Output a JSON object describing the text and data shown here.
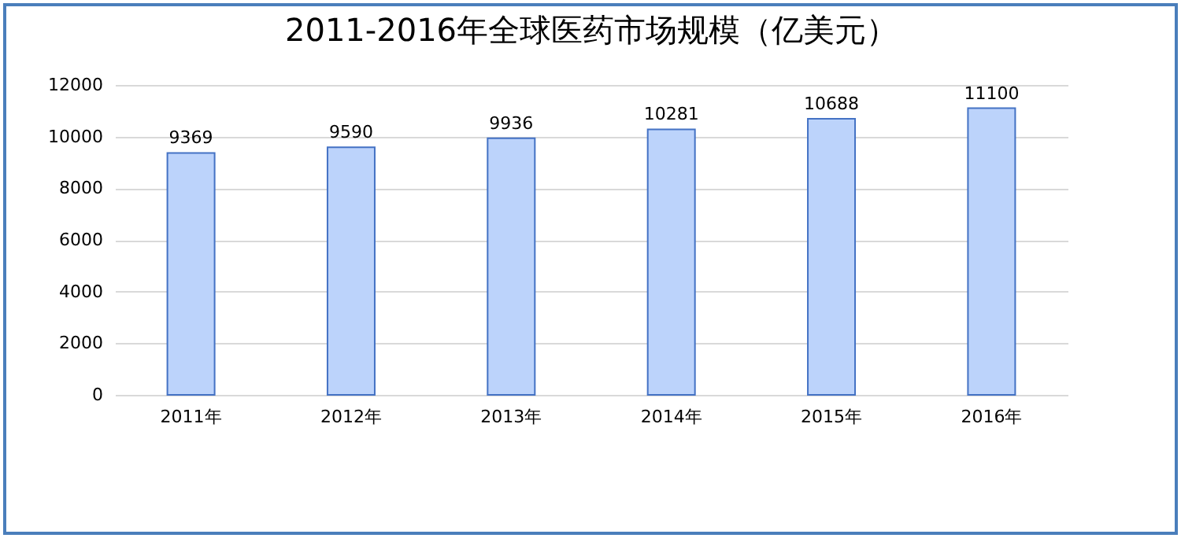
{
  "chart_data": {
    "type": "bar",
    "title": "2011-2016年全球医药市场规模（亿美元）",
    "categories": [
      "2011年",
      "2012年",
      "2013年",
      "2014年",
      "2015年",
      "2016年"
    ],
    "values": [
      9369,
      9590,
      9936,
      10281,
      10688,
      11100
    ],
    "color": "#bcd3fb",
    "ylim": [
      0,
      12000
    ],
    "yticks": [
      0,
      2000,
      4000,
      6000,
      8000,
      10000,
      12000
    ],
    "grid": "y",
    "data_labels": true
  }
}
